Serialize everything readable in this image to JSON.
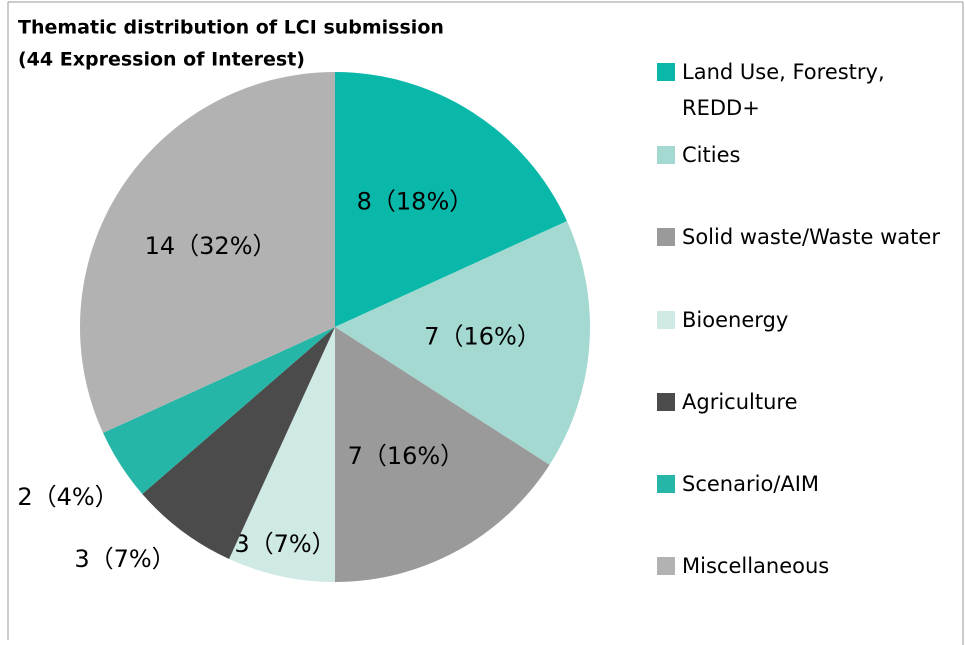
{
  "chart_data": {
    "type": "pie",
    "title": "Thematic distribution of LCI submission",
    "subtitle": "(44 Expression of Interest)",
    "categories": [
      "Land Use,  Forestry, REDD+",
      "Cities",
      "Solid waste/Waste water",
      "Bioenergy",
      "Agriculture",
      "Scenario/AIM",
      "Miscellaneous"
    ],
    "values": [
      8,
      7,
      7,
      3,
      3,
      2,
      14
    ],
    "value_labels": [
      "8（18%）",
      "7（16%）",
      "7（16%）",
      "3（7%）",
      "3（7%）",
      "2（4%）",
      "14（32%）"
    ],
    "colors": [
      "#0ab8aa",
      "#a3d9d1",
      "#9a9a9a",
      "#cfe9e5",
      "#4b4b4b",
      "#25b6a8",
      "#b2b2b2"
    ],
    "legend": "right"
  }
}
